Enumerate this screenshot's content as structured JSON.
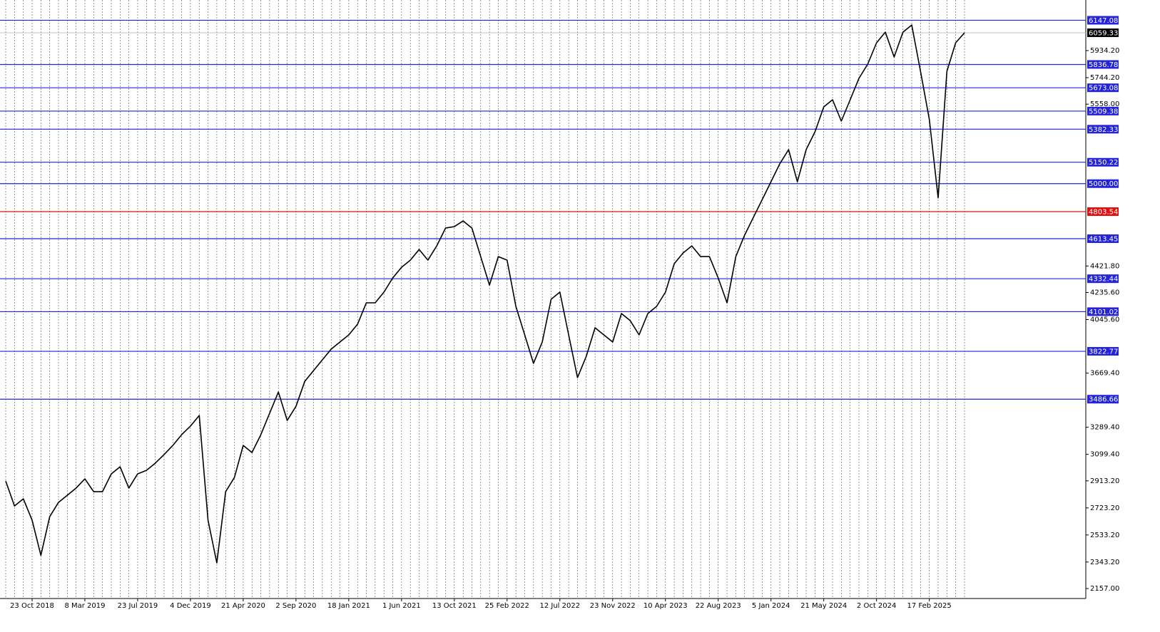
{
  "chart_data": {
    "type": "line",
    "color": "#000000",
    "grid": "vertical",
    "categories": [
      null,
      null,
      null,
      "23 Oct 2018",
      null,
      null,
      null,
      null,
      null,
      "8 Mar 2019",
      null,
      null,
      null,
      null,
      null,
      "23 Jul 2019",
      null,
      null,
      null,
      null,
      null,
      "4 Dec 2019",
      null,
      null,
      null,
      null,
      null,
      "21 Apr 2020",
      null,
      null,
      null,
      null,
      null,
      "2 Sep 2020",
      null,
      null,
      null,
      null,
      null,
      "18 Jan 2021",
      null,
      null,
      null,
      null,
      null,
      "1 Jun 2021",
      null,
      null,
      null,
      null,
      null,
      "13 Oct 2021",
      null,
      null,
      null,
      null,
      null,
      "25 Feb 2022",
      null,
      null,
      null,
      null,
      null,
      "12 Jul 2022",
      null,
      null,
      null,
      null,
      null,
      "23 Nov 2022",
      null,
      null,
      null,
      null,
      null,
      "10 Apr 2023",
      null,
      null,
      null,
      null,
      null,
      "22 Aug 2023",
      null,
      null,
      null,
      null,
      null,
      "5 Jan 2024",
      null,
      null,
      null,
      null,
      null,
      "21 May 2024",
      null,
      null,
      null,
      null,
      null,
      "2 Oct 2024",
      null,
      null,
      null,
      null,
      null,
      "17 Feb 2025",
      null,
      null,
      null,
      null
    ],
    "values": [
      2912,
      2737,
      2787,
      2637,
      2390,
      2662,
      2762,
      2812,
      2862,
      2927,
      2837,
      2837,
      2962,
      3012,
      2862,
      2962,
      2987,
      3037,
      3097,
      3162,
      3237,
      3297,
      3372,
      2637,
      2337,
      2837,
      2937,
      3162,
      3112,
      3237,
      3387,
      3537,
      3337,
      3437,
      3612,
      3688,
      3763,
      3838,
      3888,
      3938,
      4013,
      4163,
      4163,
      4238,
      4338,
      4413,
      4463,
      4538,
      4463,
      4563,
      4688,
      4698,
      4738,
      4688,
      4488,
      4288,
      4488,
      4463,
      4138,
      3938,
      3738,
      3888,
      4188,
      4238,
      3938,
      3638,
      3788,
      3988,
      3938,
      3888,
      4088,
      4038,
      3938,
      4088,
      4138,
      4238,
      4438,
      4513,
      4563,
      4488,
      4488,
      4338,
      4163,
      4488,
      4638,
      4763,
      4888,
      5013,
      5139,
      5239,
      5013,
      5239,
      5364,
      5539,
      5589,
      5439,
      5589,
      5739,
      5839,
      5989,
      6064,
      5889,
      6064,
      6114,
      5789,
      5450,
      4900,
      5789,
      5989,
      6059.33
    ],
    "ylim": [
      2087,
      6289.4
    ],
    "yticks": [
      {
        "value": 5934.2,
        "label": "5934.20"
      },
      {
        "value": 5744.2,
        "label": "5744.20"
      },
      {
        "value": 5558,
        "label": "5558.00"
      },
      {
        "value": 4421.8,
        "label": "4421.80"
      },
      {
        "value": 4235.6,
        "label": "4235.60"
      },
      {
        "value": 4045.6,
        "label": "4045.60"
      },
      {
        "value": 3669.4,
        "label": "3669.40"
      },
      {
        "value": 3289.4,
        "label": "3289.40"
      },
      {
        "value": 3099.4,
        "label": "3099.40"
      },
      {
        "value": 2913.2,
        "label": "2913.20"
      },
      {
        "value": 2723.2,
        "label": "2723.20"
      },
      {
        "value": 2533.2,
        "label": "2533.20"
      },
      {
        "value": 2343.2,
        "label": "2343.20"
      },
      {
        "value": 2157,
        "label": "2157.00"
      }
    ],
    "levels": [
      {
        "value": 6147.08,
        "color": "#2323d8"
      },
      {
        "value": 5836.78,
        "color": "#2323d8"
      },
      {
        "value": 5673.08,
        "color": "#2323d8"
      },
      {
        "value": 5509.38,
        "color": "#2323d8"
      },
      {
        "value": 5382.33,
        "color": "#2323d8"
      },
      {
        "value": 5150.22,
        "color": "#2323d8"
      },
      {
        "value": 5000,
        "label": "5000.00",
        "color": "#2323d8"
      },
      {
        "value": 4803.54,
        "color": "#e01010"
      },
      {
        "value": 4613.45,
        "color": "#2323d8"
      },
      {
        "value": 4332.44,
        "color": "#2323d8"
      },
      {
        "value": 4101.02,
        "color": "#2323d8"
      },
      {
        "value": 3822.77,
        "color": "#2323d8"
      },
      {
        "value": 3486.66,
        "color": "#2323d8"
      }
    ],
    "last_price": 6059.33
  }
}
